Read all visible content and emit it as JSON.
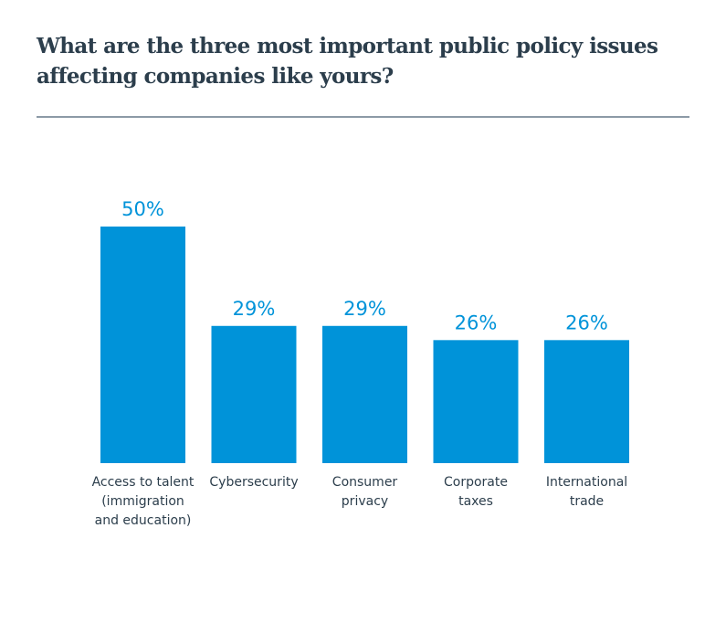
{
  "title_line1": "What are the three most important public policy issues",
  "title_line2": "affecting companies like yours?",
  "chart_data": {
    "type": "bar",
    "title": "What are the three most important public policy issues affecting companies like yours?",
    "categories": [
      [
        "Access to talent",
        "(immigration",
        "and education)"
      ],
      [
        "Cybersecurity"
      ],
      [
        "Consumer",
        "privacy"
      ],
      [
        "Corporate",
        "taxes"
      ],
      [
        "International",
        "trade"
      ]
    ],
    "values": [
      50,
      29,
      29,
      26,
      26
    ],
    "value_labels": [
      "50%",
      "29%",
      "29%",
      "26%",
      "26%"
    ],
    "ylim": [
      0,
      50
    ],
    "grid": false,
    "bar_color": "#0093d9"
  }
}
